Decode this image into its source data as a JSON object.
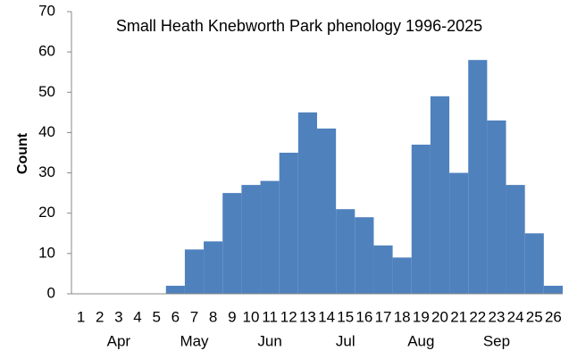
{
  "chart_data": {
    "type": "bar",
    "title": "Small Heath Knebworth Park phenology 1996-2025",
    "y_label": "Count",
    "categories": [
      "1",
      "2",
      "3",
      "4",
      "5",
      "6",
      "7",
      "8",
      "9",
      "10",
      "11",
      "12",
      "13",
      "14",
      "15",
      "16",
      "17",
      "18",
      "19",
      "20",
      "21",
      "22",
      "23",
      "24",
      "25",
      "26"
    ],
    "month_categories": [
      null,
      null,
      "Apr",
      null,
      null,
      null,
      "May",
      null,
      null,
      null,
      "Jun",
      null,
      null,
      null,
      "Jul",
      null,
      null,
      null,
      "Aug",
      null,
      null,
      null,
      "Sep",
      null,
      null,
      null
    ],
    "values": [
      0,
      0,
      0,
      0,
      0,
      2,
      11,
      13,
      25,
      27,
      28,
      35,
      45,
      41,
      21,
      19,
      12,
      9,
      37,
      49,
      30,
      58,
      43,
      27,
      15,
      2
    ],
    "color": "#4f81bd",
    "ylim": [
      0,
      70
    ],
    "yticks": [
      0,
      10,
      20,
      30,
      40,
      50,
      60,
      70
    ],
    "grid": false
  }
}
